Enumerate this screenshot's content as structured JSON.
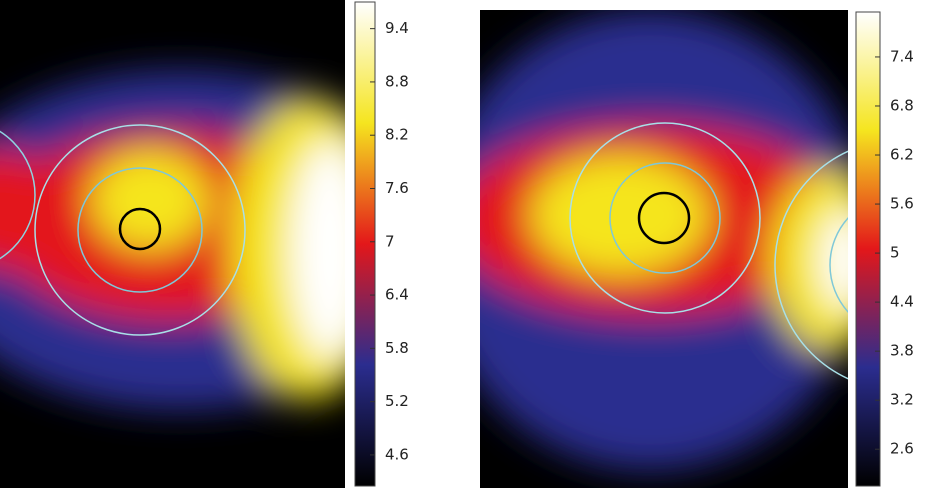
{
  "chart_data": [
    {
      "type": "heatmap",
      "colormap": [
        "#000000",
        "#2b2d8f",
        "#e3171a",
        "#f5e51f",
        "#ffffff"
      ],
      "zlim": [
        4.25,
        9.7
      ],
      "zticks": [
        4.6,
        5.2,
        5.8,
        6.4,
        7,
        7.6,
        8.2,
        8.8,
        9.4
      ]
    },
    {
      "type": "heatmap",
      "colormap": [
        "#000000",
        "#2b2d8f",
        "#e3171a",
        "#f5e51f",
        "#ffffff"
      ],
      "zlim": [
        2.15,
        7.95
      ],
      "zticks": [
        2.6,
        3.2,
        3.8,
        4.4,
        5,
        5.6,
        6.2,
        6.8,
        7.4
      ]
    }
  ]
}
